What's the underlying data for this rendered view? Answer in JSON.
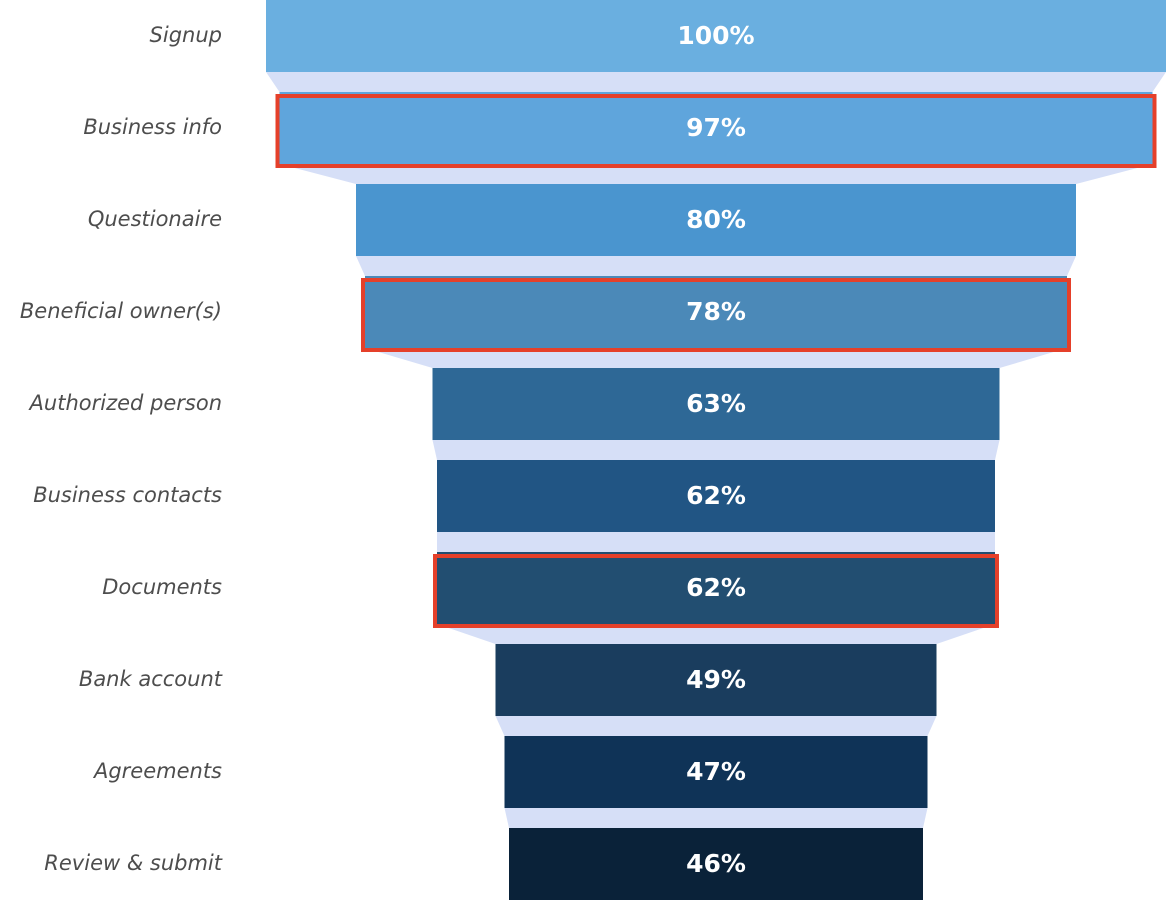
{
  "chart_data": {
    "type": "funnel",
    "categories": [
      "Signup",
      "Business info",
      "Questionaire",
      "Beneficial owner(s)",
      "Authorized person",
      "Business contacts",
      "Documents",
      "Bank account",
      "Agreements",
      "Review & submit"
    ],
    "values": [
      100,
      97,
      80,
      78,
      63,
      62,
      62,
      49,
      47,
      46
    ],
    "value_labels": [
      "100%",
      "97%",
      "80%",
      "78%",
      "63%",
      "62%",
      "62%",
      "49%",
      "47%",
      "46%"
    ],
    "colors": [
      "#6aafe0",
      "#5fa5dc",
      "#4a95cf",
      "#4b89b8",
      "#2e6896",
      "#215584",
      "#224e71",
      "#1a3d5e",
      "#0f3357",
      "#0a2239"
    ],
    "connector_color": "#d6dff7",
    "highlighted": [
      false,
      true,
      false,
      true,
      false,
      false,
      true,
      false,
      false,
      false
    ],
    "highlight_color": "#e5402a"
  }
}
